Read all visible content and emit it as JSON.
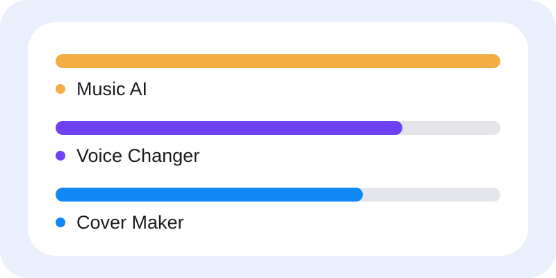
{
  "chart_data": {
    "type": "bar",
    "orientation": "horizontal",
    "categories": [
      "Music AI",
      "Voice Changer",
      "Cover Maker"
    ],
    "values": [
      100,
      78,
      69
    ],
    "xlim": [
      0,
      100
    ],
    "title": "",
    "xlabel": "",
    "ylabel": "",
    "grid": false,
    "colors": [
      "#f2ae45",
      "#7041f2",
      "#1088f6"
    ],
    "track_color": "#e4e5ea"
  }
}
